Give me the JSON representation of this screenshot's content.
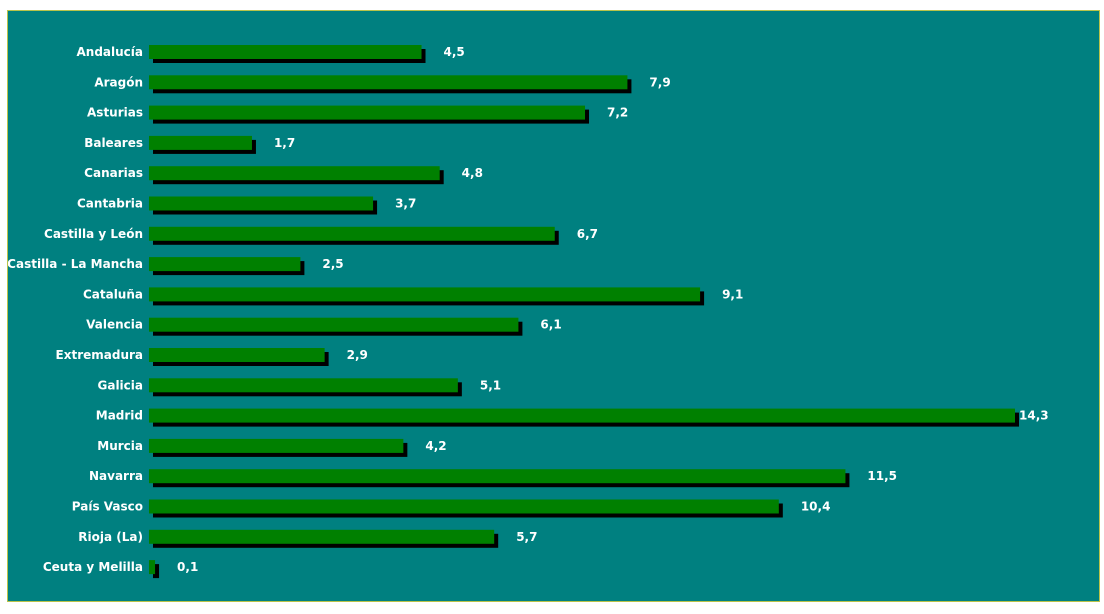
{
  "chart_data": {
    "type": "bar",
    "orientation": "horizontal",
    "categories": [
      "Andalucía",
      "Aragón",
      "Asturias",
      "Baleares",
      "Canarias",
      "Cantabria",
      "Castilla y León",
      "Castilla - La Mancha",
      "Cataluña",
      "Valencia",
      "Extremadura",
      "Galicia",
      "Madrid",
      "Murcia",
      "Navarra",
      "País Vasco",
      "Rioja (La)",
      "Ceuta y Melilla"
    ],
    "value_labels": [
      "4,5",
      "7,9",
      "7,2",
      "1,7",
      "4,8",
      "3,7",
      "6,7",
      "2,5",
      "9,1",
      "6,1",
      "2,9",
      "5,1",
      "14,3",
      "4,2",
      "11,5",
      "10,4",
      "5,7",
      "0,1"
    ],
    "series": [
      {
        "values": [
          4.5,
          7.9,
          7.2,
          1.7,
          4.8,
          3.7,
          6.7,
          2.5,
          9.1,
          6.1,
          2.9,
          5.1,
          14.3,
          4.2,
          11.5,
          10.4,
          5.7,
          0.1
        ]
      }
    ],
    "title": "",
    "xlabel": "",
    "ylabel": "",
    "xlim": [
      0,
      14.3
    ],
    "grid": false,
    "legend": "none",
    "colors": {
      "background": "#008080",
      "bar": "#008000",
      "bar_shadow": "#000000",
      "text": "#ffffff",
      "border": "#b9c34a"
    }
  }
}
